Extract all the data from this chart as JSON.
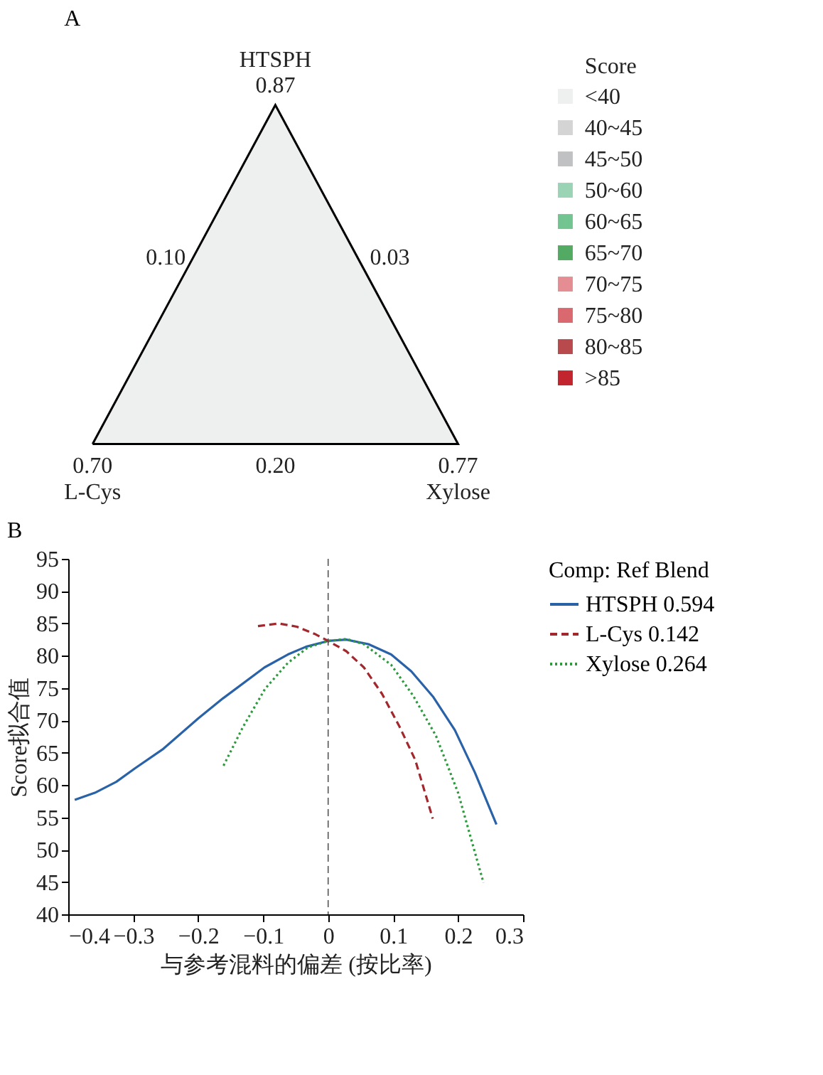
{
  "chart_data": [
    {
      "type": "other",
      "title": "A",
      "legend_title": "Score",
      "categories": [
        "<40",
        "40~45",
        "45~50",
        "50~60",
        "60~65",
        "65~70",
        "70~75",
        "75~80",
        "80~85",
        ">85"
      ],
      "colors": [
        "#eef0ef",
        "#d4d4d4",
        "#c0c1c3",
        "#9bd3b5",
        "#72c590",
        "#52aa63",
        "#e48e93",
        "#d9686f",
        "#b84a4e",
        "#c2252d"
      ],
      "annotations": [
        "HTSPH",
        "0.87",
        "0.10",
        "0.03",
        "0.70",
        "0.20",
        "0.77",
        "L-Cys",
        "Xylose"
      ]
    },
    {
      "type": "line",
      "title": "B",
      "xlabel": "与参考混料的偏差 (按比率)",
      "ylabel": "Score拟合值",
      "legend_title": "Comp: Ref Blend",
      "xlim": [
        -0.4,
        0.3
      ],
      "xticks": [
        -0.4,
        -0.3,
        -0.2,
        -0.1,
        0,
        0.1,
        0.2,
        0.3
      ],
      "ylim": [
        40,
        95
      ],
      "yticks": [
        40,
        45,
        50,
        55,
        60,
        65,
        70,
        75,
        80,
        85,
        90,
        95
      ],
      "grid": false,
      "legend": "top right",
      "ref_lines": [
        {
          "axis": "x",
          "value": 0,
          "color": "#555555",
          "line_style": "dashed"
        }
      ],
      "series": [
        {
          "name": "HTSPH 0.594",
          "color": "#2a62a8",
          "line_style": "solid",
          "x": [
            -0.39,
            -0.359,
            -0.326,
            -0.297,
            -0.255,
            -0.2,
            -0.162,
            -0.098,
            -0.062,
            -0.034,
            0,
            0.028,
            0.062,
            0.097,
            0.128,
            0.162,
            0.195,
            0.226,
            0.259
          ],
          "values": [
            57.7,
            58.8,
            60.5,
            62.6,
            65.5,
            70.3,
            73.4,
            78.2,
            80.2,
            81.4,
            82.3,
            82.5,
            81.8,
            80.2,
            77.6,
            73.6,
            68.5,
            61.9,
            53.9
          ]
        },
        {
          "name": "L-Cys 0.142",
          "color": "#a2282e",
          "line_style": "dashed",
          "x": [
            -0.108,
            -0.076,
            -0.048,
            -0.021,
            0,
            0.028,
            0.055,
            0.083,
            0.11,
            0.134,
            0.161
          ],
          "values": [
            84.6,
            85.0,
            84.5,
            83.4,
            82.3,
            80.7,
            78.2,
            74.1,
            69.0,
            63.9,
            54.8
          ]
        },
        {
          "name": "Xylose 0.264",
          "color": "#2e9a3e",
          "line_style": "dotted",
          "x": [
            -0.161,
            -0.131,
            -0.097,
            -0.062,
            -0.031,
            0,
            0.028,
            0.055,
            0.097,
            0.131,
            0.166,
            0.2,
            0.239
          ],
          "values": [
            63.0,
            69.0,
            74.9,
            78.9,
            81.3,
            82.3,
            82.6,
            81.8,
            78.6,
            73.8,
            67.6,
            58.8,
            44.9
          ]
        }
      ]
    }
  ]
}
